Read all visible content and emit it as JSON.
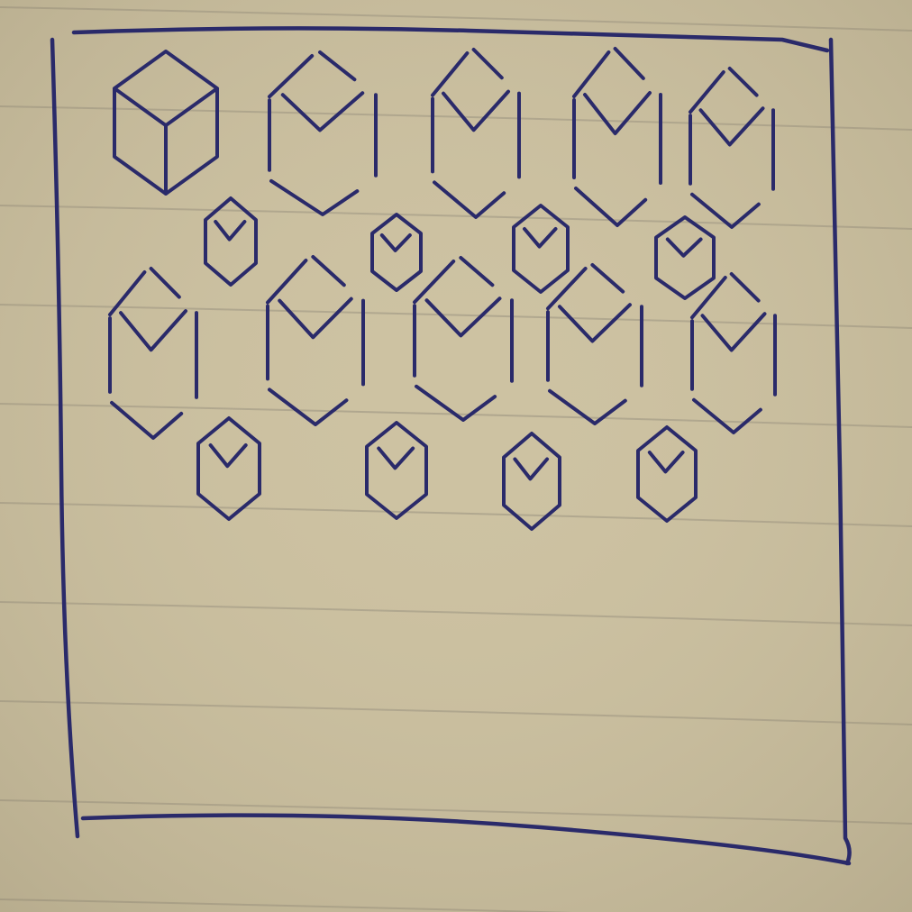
{
  "photo": {
    "subject": "",
    "paper_color": "#cdc2a2",
    "rule_color": "#a39a86",
    "ink_color": "#2a2a6a",
    "row_counts": [
      5,
      4,
      5,
      4
    ],
    "shape_kinds": [
      "cube",
      "open-hexagon",
      "small-hexagon"
    ],
    "frame_icon": "square-frame-icon"
  }
}
